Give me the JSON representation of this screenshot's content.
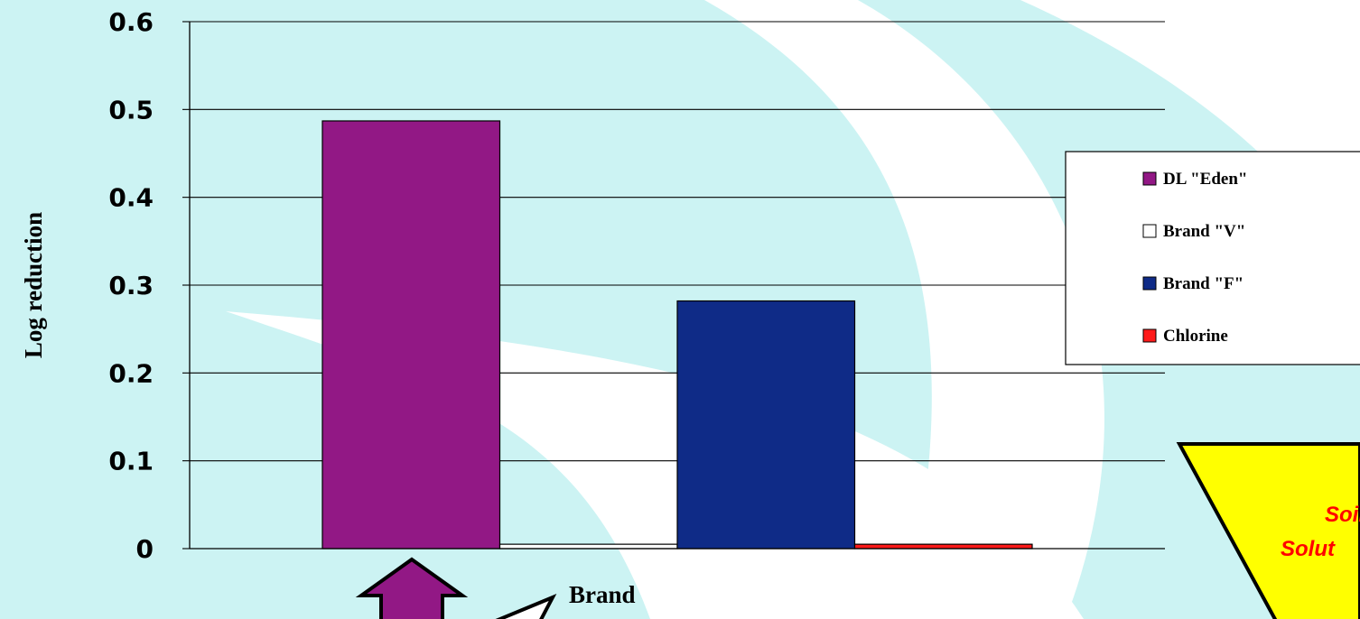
{
  "chart_data": {
    "type": "bar",
    "title": "",
    "xlabel": "Brand",
    "ylabel": "Log reduction",
    "ylim": [
      0,
      0.6
    ],
    "yticks": [
      "0",
      "0.1",
      "0.2",
      "0.3",
      "0.4",
      "0.5",
      "0.6"
    ],
    "grid": true,
    "legend_position": "right",
    "series": [
      {
        "name": "DL \"Eden\"",
        "value": 0.487,
        "color": "#921885"
      },
      {
        "name": "Brand \"V\"",
        "value": 0.005,
        "color": "#ffffff"
      },
      {
        "name": "Brand \"F\"",
        "value": 0.282,
        "color": "#0f2b87"
      },
      {
        "name": "Chlorine",
        "value": 0.005,
        "color": "#ff1a1a"
      }
    ]
  },
  "callout": {
    "line1": "Soil",
    "line2": "Solut",
    "fill": "#ffff00"
  },
  "arrow": {
    "fill": "#921885"
  }
}
